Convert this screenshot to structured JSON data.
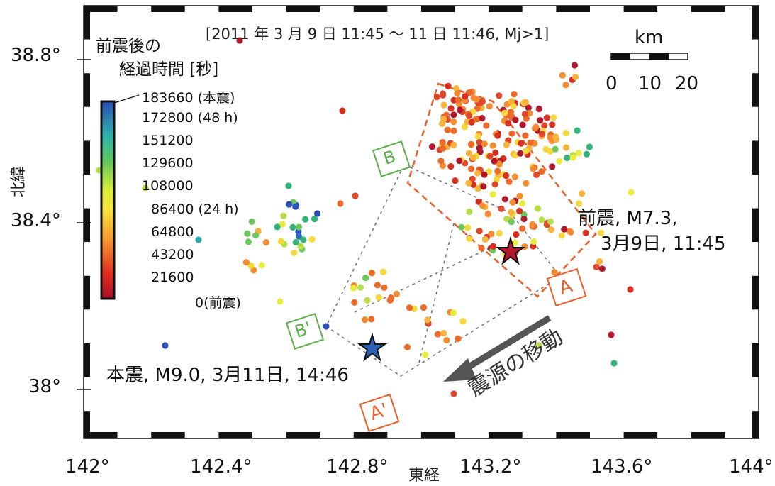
{
  "title": {
    "line1": "前震後の",
    "line2": "経過時間 [秒]",
    "range": "[2011 年 3 月 9 日 11:45 〜 11 日 11:46, Mj>1]"
  },
  "axes": {
    "xlabel": "東経",
    "ylabel": "北緯",
    "x_ticks": [
      "142°",
      "142.4°",
      "142.8°",
      "143.2°",
      "143.6°",
      "144°"
    ],
    "y_ticks": [
      "38.8°",
      "38.4°",
      "38°"
    ]
  },
  "colorbar": {
    "ticks": [
      "183660 (本震)",
      "172800 (48 h)",
      "151200",
      "129600",
      "108000",
      "86400 (24 h)",
      "64800",
      "43200",
      "21600",
      "0(前震)"
    ],
    "colors": [
      "#b2182b",
      "#e03a20",
      "#f08a32",
      "#f8c23a",
      "#f2ee3a",
      "#a8d84a",
      "#3cb85c",
      "#2aa7a7",
      "#2b5fb8"
    ]
  },
  "scale_bar": {
    "unit": "km",
    "labels": [
      "0",
      "10",
      "20"
    ]
  },
  "events": {
    "foreshock_line1": "前震, M7.3,",
    "foreshock_line2": "3月9日, 11:45",
    "mainshock": "本震, M9.0, 3月11日, 14:46"
  },
  "sections": {
    "a": "A",
    "a_prime": "A'",
    "b": "B",
    "b_prime": "B'"
  },
  "annotation": {
    "migration": "震源の移動"
  },
  "colors": {
    "section_a": "#e8602a",
    "section_b": "#5cb04a",
    "arrow": "#555555"
  }
}
